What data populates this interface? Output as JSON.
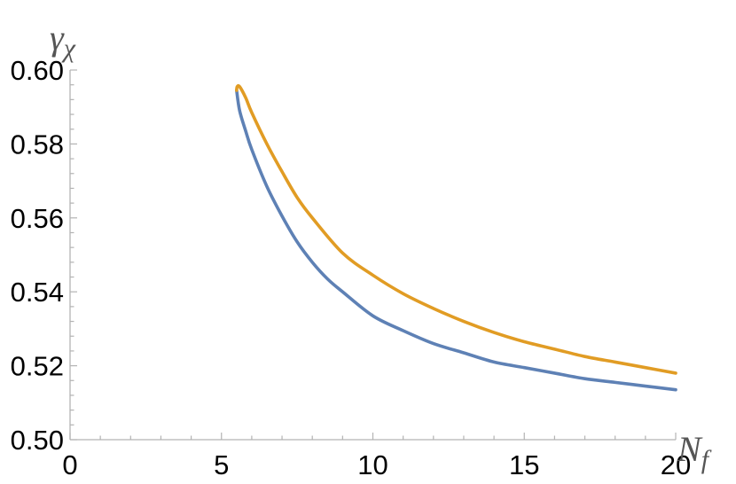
{
  "chart_data": {
    "type": "line",
    "xlabel": "N",
    "xlabel_sub": "f",
    "ylabel": "γ",
    "ylabel_sub": "χ",
    "xlim": [
      0,
      20
    ],
    "ylim": [
      0.5,
      0.6
    ],
    "x_ticks": [
      {
        "value": 0,
        "label": "0"
      },
      {
        "value": 5,
        "label": "5"
      },
      {
        "value": 10,
        "label": "10"
      },
      {
        "value": 15,
        "label": "15"
      },
      {
        "value": 20,
        "label": "20"
      }
    ],
    "y_ticks": [
      {
        "value": 0.5,
        "label": "0.50"
      },
      {
        "value": 0.52,
        "label": "0.52"
      },
      {
        "value": 0.54,
        "label": "0.54"
      },
      {
        "value": 0.56,
        "label": "0.56"
      },
      {
        "value": 0.58,
        "label": "0.58"
      },
      {
        "value": 0.6,
        "label": "0.60"
      }
    ],
    "grid": false,
    "series": [
      {
        "color": "#5E81B5",
        "points": [
          [
            5.5,
            0.5945
          ],
          [
            5.6,
            0.589
          ],
          [
            5.8,
            0.5835
          ],
          [
            6.0,
            0.5785
          ],
          [
            6.5,
            0.5685
          ],
          [
            7.0,
            0.5605
          ],
          [
            7.5,
            0.5535
          ],
          [
            8.0,
            0.548
          ],
          [
            8.5,
            0.5435
          ],
          [
            9.0,
            0.54
          ],
          [
            10.0,
            0.5335
          ],
          [
            11.0,
            0.5295
          ],
          [
            12.0,
            0.526
          ],
          [
            13.0,
            0.5235
          ],
          [
            14.0,
            0.521
          ],
          [
            15.0,
            0.5195
          ],
          [
            16.0,
            0.518
          ],
          [
            17.0,
            0.5165
          ],
          [
            18.0,
            0.5155
          ],
          [
            19.0,
            0.5145
          ],
          [
            20.0,
            0.5135
          ]
        ]
      },
      {
        "color": "#E19C24",
        "points": [
          [
            5.5,
            0.5945
          ],
          [
            5.52,
            0.5955
          ],
          [
            5.6,
            0.5955
          ],
          [
            5.8,
            0.5925
          ],
          [
            6.0,
            0.5885
          ],
          [
            6.5,
            0.58
          ],
          [
            7.0,
            0.5725
          ],
          [
            7.5,
            0.5655
          ],
          [
            8.0,
            0.56
          ],
          [
            9.0,
            0.5505
          ],
          [
            10.0,
            0.5445
          ],
          [
            11.0,
            0.5395
          ],
          [
            12.0,
            0.5355
          ],
          [
            13.0,
            0.532
          ],
          [
            14.0,
            0.529
          ],
          [
            15.0,
            0.5265
          ],
          [
            16.0,
            0.5245
          ],
          [
            17.0,
            0.5225
          ],
          [
            18.0,
            0.521
          ],
          [
            19.0,
            0.5195
          ],
          [
            20.0,
            0.518
          ]
        ]
      }
    ]
  }
}
